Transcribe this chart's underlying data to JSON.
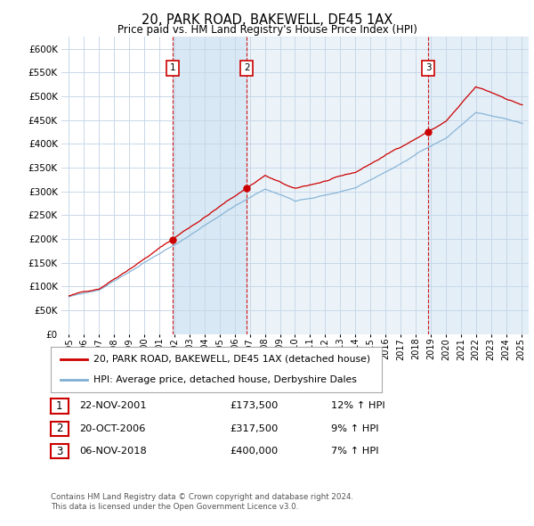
{
  "title": "20, PARK ROAD, BAKEWELL, DE45 1AX",
  "subtitle": "Price paid vs. HM Land Registry's House Price Index (HPI)",
  "legend_house": "20, PARK ROAD, BAKEWELL, DE45 1AX (detached house)",
  "legend_hpi": "HPI: Average price, detached house, Derbyshire Dales",
  "footer": "Contains HM Land Registry data © Crown copyright and database right 2024.\nThis data is licensed under the Open Government Licence v3.0.",
  "transactions": [
    {
      "num": 1,
      "date": "22-NOV-2001",
      "price": "£173,500",
      "hpi_pct": "12% ↑ HPI",
      "x_year": 2001.9,
      "y_price": 173500
    },
    {
      "num": 2,
      "date": "20-OCT-2006",
      "price": "£317,500",
      "hpi_pct": "9% ↑ HPI",
      "x_year": 2006.8,
      "y_price": 317500
    },
    {
      "num": 3,
      "date": "06-NOV-2018",
      "price": "£400,000",
      "hpi_pct": "7% ↑ HPI",
      "x_year": 2018.85,
      "y_price": 400000
    }
  ],
  "ylim": [
    0,
    625000
  ],
  "yticks": [
    0,
    50000,
    100000,
    150000,
    200000,
    250000,
    300000,
    350000,
    400000,
    450000,
    500000,
    550000,
    600000
  ],
  "background_color": "#ffffff",
  "plot_bg_color": "#ffffff",
  "grid_color": "#c8d8e8",
  "house_line_color": "#cc0000",
  "hpi_line_color": "#7fafd4",
  "vline_color": "#cc0000",
  "box_color": "#cc0000",
  "shade_color": "#d8e8f4",
  "xlim_start": 1994.5,
  "xlim_end": 2025.5,
  "dot_color": "#cc0000"
}
